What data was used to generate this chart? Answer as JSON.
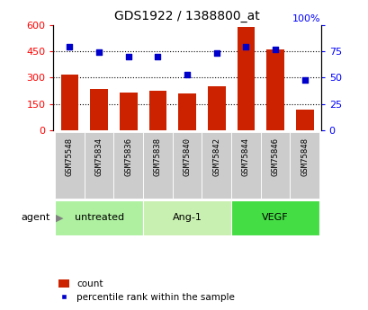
{
  "title": "GDS1922 / 1388800_at",
  "samples": [
    "GSM75548",
    "GSM75834",
    "GSM75836",
    "GSM75838",
    "GSM75840",
    "GSM75842",
    "GSM75844",
    "GSM75846",
    "GSM75848"
  ],
  "counts": [
    315,
    235,
    215,
    225,
    210,
    250,
    590,
    460,
    115
  ],
  "percentiles": [
    79,
    74,
    70,
    70,
    53,
    73,
    79,
    77,
    48
  ],
  "groups": [
    {
      "label": "untreated",
      "indices": [
        0,
        1,
        2
      ],
      "color": "#aef0a0"
    },
    {
      "label": "Ang-1",
      "indices": [
        3,
        4,
        5
      ],
      "color": "#c8f0b0"
    },
    {
      "label": "VEGF",
      "indices": [
        6,
        7,
        8
      ],
      "color": "#44dd44"
    }
  ],
  "bar_color": "#cc2200",
  "dot_color": "#0000cc",
  "left_ylim": [
    0,
    600
  ],
  "right_ylim": [
    0,
    100
  ],
  "left_yticks": [
    0,
    150,
    300,
    450,
    600
  ],
  "right_yticks": [
    0,
    25,
    50,
    75,
    100
  ],
  "agent_label": "agent",
  "legend_count": "count",
  "legend_percentile": "percentile rank within the sample",
  "fig_width": 4.1,
  "fig_height": 3.45,
  "dpi": 100
}
